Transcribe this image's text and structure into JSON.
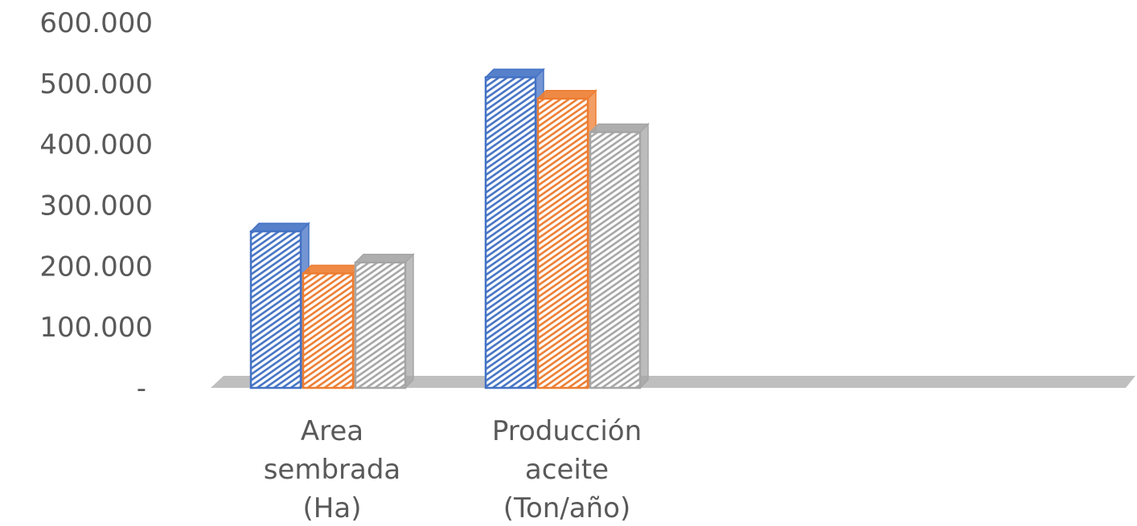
{
  "chart_data": {
    "type": "bar",
    "style": "3d-clustered-column",
    "categories": [
      [
        "Area",
        "sembrada",
        "(Ha)"
      ],
      [
        "Producción",
        "aceite",
        "(Ton/año)"
      ],
      [],
      []
    ],
    "series": [
      {
        "color": "#4472c4",
        "values": [
          257000,
          510000,
          null,
          null
        ]
      },
      {
        "color": "#ed7d31",
        "values": [
          188000,
          475000,
          null,
          null
        ]
      },
      {
        "color": "#a5a5a5",
        "values": [
          206000,
          420000,
          null,
          null
        ]
      }
    ],
    "yticks": [
      "-",
      "100.000",
      "200.000",
      "300.000",
      "400.000",
      "500.000",
      "600.000"
    ],
    "ylim": [
      0,
      600000
    ],
    "grid": false,
    "legend": "none",
    "colors": {
      "floor": "#bfbfbf",
      "text": "#595959"
    }
  }
}
